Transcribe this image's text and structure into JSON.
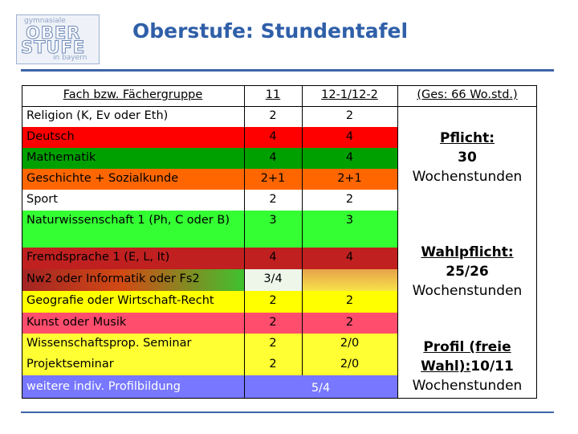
{
  "logo": {
    "line1": "gymnasiale",
    "line2": "OBER",
    "line3": "STUFE",
    "line4": "in bayern"
  },
  "title": "Oberstufe: Stundentafel",
  "header": {
    "fach": "Fach bzw. Fächergruppe",
    "col11": "11",
    "col12": "12-1/12-2",
    "ges": "(Ges: 66 Wo.std.)"
  },
  "rows": [
    {
      "fach": "Religion (K, Ev oder Eth)",
      "v11": "2",
      "v12": "2",
      "color": "#ffffff"
    },
    {
      "fach": "Deutsch",
      "v11": "4",
      "v12": "4",
      "color": "#ff0000"
    },
    {
      "fach": "Mathematik",
      "v11": "4",
      "v12": "4",
      "color": "#00a000"
    },
    {
      "fach": "Geschichte + Sozialkunde",
      "v11": "2+1",
      "v12": "2+1",
      "color": "#ff6600"
    },
    {
      "fach": "Sport",
      "v11": "2",
      "v12": "2",
      "color": "#ffffff"
    },
    {
      "fach": "Naturwissenschaft 1 (Ph, C oder B)",
      "v11": "3",
      "v12": "3",
      "color": "#33ff33"
    },
    {
      "fach": "Fremdsprache 1 (E, L, It)",
      "v11": "4",
      "v12": "4",
      "color": "#c02020"
    },
    {
      "fach": "Nw2 oder Informatik oder Fs2",
      "v11": "3/4",
      "v12": "",
      "color": "gradient"
    },
    {
      "fach": "Geografie oder Wirtschaft-Recht",
      "v11": "2",
      "v12": "2",
      "color": "#ffff00"
    },
    {
      "fach": "Kunst oder Musik",
      "v11": "2",
      "v12": "2",
      "color": "#ff4d6d"
    },
    {
      "fach": "Wissenschaftsprop. Seminar",
      "v11": "2",
      "v12": "2/0",
      "color": "#ffff33"
    },
    {
      "fach": "Projektseminar",
      "v11": "2",
      "v12": "2/0",
      "color": "#ffff33"
    },
    {
      "fach": "weitere indiv. Profilbildung",
      "v11": "",
      "v12": "",
      "color": "#7777ff"
    }
  ],
  "merged_last": "5/4",
  "groups": {
    "pflicht": {
      "title": "Pflicht:",
      "value": "30",
      "unit": "Wochenstunden"
    },
    "wahlpflicht": {
      "title": "Wahlpflicht:",
      "value": "25/26",
      "unit": "Wochenstunden"
    },
    "profil": {
      "title": "Profil (freie Wahl):",
      "value": "10/11",
      "unit": "Wochenstunden"
    }
  }
}
